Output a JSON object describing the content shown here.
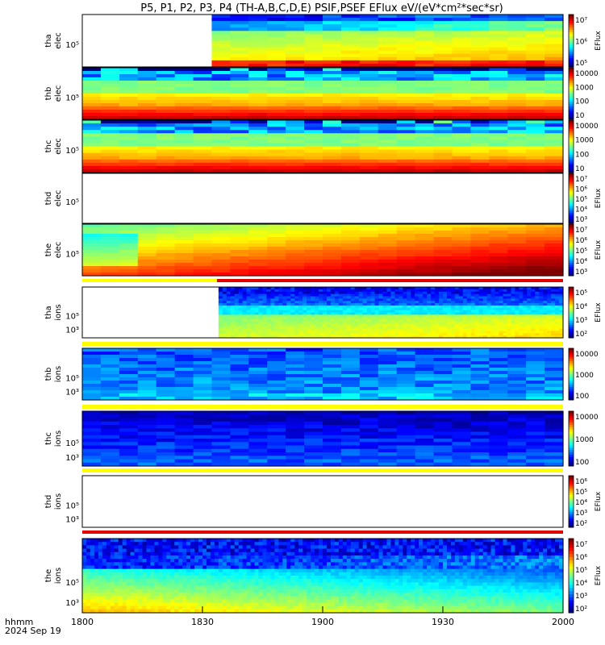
{
  "title": "P5, P1, P2, P3, P4 (TH-A,B,C,D,E) PSIF,PSEF EFlux eV/(eV*cm²*sec*sr)",
  "footer": {
    "hhmm": "hhmm",
    "date": "2024 Sep 19"
  },
  "x_ticks": [
    "1800",
    "1830",
    "1900",
    "1930",
    "2000"
  ],
  "colorbar_label": "EFlux",
  "chart_data": {
    "type": "heatmap",
    "title": "P5, P1, P2, P3, P4 (TH-A,B,C,D,E) PSIF,PSEF EFlux eV/(eV*cm²*sec*sr)",
    "x_range": [
      "18:00",
      "20:00"
    ],
    "x_ticks": [
      "1800",
      "1830",
      "1900",
      "1930",
      "2000"
    ],
    "panels": [
      {
        "id": "tha-elec",
        "line1": "tha",
        "line2": "elec",
        "y_tick": "10⁵",
        "cbar_ticks": [
          "10⁷",
          "10⁶",
          "10⁵"
        ],
        "cbar_label": "EFlux",
        "pattern": "data_gap_then_spectrum",
        "data_start": "18:34"
      },
      {
        "id": "thb-elec",
        "line1": "thb",
        "line2": "elec",
        "y_tick": "10⁵",
        "cbar_ticks": [
          "10000",
          "1000",
          "100",
          "10"
        ],
        "cbar_label": "",
        "pattern": "uniform_bands"
      },
      {
        "id": "thc-elec",
        "line1": "thc",
        "line2": "elec",
        "y_tick": "10⁵",
        "cbar_ticks": [
          "10000",
          "1000",
          "100",
          "10"
        ],
        "cbar_label": "",
        "pattern": "uniform_bands"
      },
      {
        "id": "thd-elec",
        "line1": "thd",
        "line2": "elec",
        "y_tick": "10⁵",
        "cbar_ticks": [
          "10⁷",
          "10⁶",
          "10⁵",
          "10⁴",
          "10³"
        ],
        "cbar_label": "EFlux",
        "pattern": "empty"
      },
      {
        "id": "the-elec",
        "line1": "the",
        "line2": "elec",
        "y_tick": "10⁵",
        "cbar_ticks": [
          "10⁷",
          "10⁶",
          "10⁵",
          "10⁴",
          "10³"
        ],
        "cbar_label": "EFlux",
        "pattern": "warming_trend"
      },
      {
        "id": "tha-ions",
        "line1": "tha",
        "line2": "ions",
        "y_tick": "10⁵",
        "y_tick_low": "10³",
        "cbar_ticks": [
          "10⁵",
          "10⁴",
          "10³",
          "10²"
        ],
        "cbar_label": "EFlux",
        "pattern": "ion_data_gap",
        "data_start": "18:34"
      },
      {
        "id": "thb-ions",
        "line1": "thb",
        "line2": "ions",
        "y_tick": "10⁵",
        "y_tick_low": "10³",
        "cbar_ticks": [
          "10000",
          "1000",
          "100"
        ],
        "cbar_label": "",
        "pattern": "blue_blocks"
      },
      {
        "id": "thc-ions",
        "line1": "thc",
        "line2": "ions",
        "y_tick": "10⁵",
        "y_tick_low": "10³",
        "cbar_ticks": [
          "10000",
          "1000",
          "100"
        ],
        "cbar_label": "",
        "pattern": "purple_blocks"
      },
      {
        "id": "thd-ions",
        "line1": "thd",
        "line2": "ions",
        "y_tick": "10⁵",
        "y_tick_low": "10³",
        "cbar_ticks": [
          "10⁶",
          "10⁵",
          "10⁴",
          "10³",
          "10²"
        ],
        "cbar_label": "EFlux",
        "pattern": "empty"
      },
      {
        "id": "the-ions",
        "line1": "the",
        "line2": "ions",
        "y_tick": "10⁵",
        "y_tick_low": "10³",
        "cbar_ticks": [
          "10⁷",
          "10⁶",
          "10⁵",
          "10⁴",
          "10³",
          "10²"
        ],
        "cbar_label": "EFlux",
        "pattern": "ion_spectrum"
      }
    ]
  }
}
